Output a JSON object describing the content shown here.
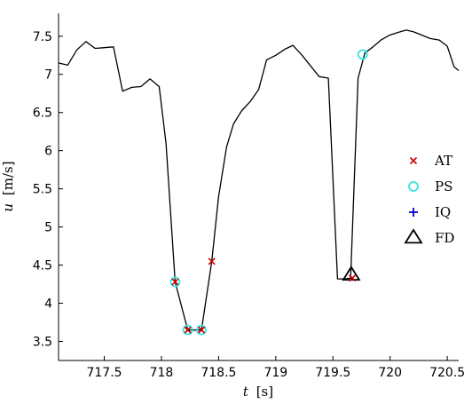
{
  "chart_data": {
    "type": "line",
    "xlabel": {
      "var": "t",
      "unit": "[s]"
    },
    "ylabel": {
      "var": "u",
      "unit": "[m/s]"
    },
    "xlim": [
      717.1,
      720.6
    ],
    "ylim": [
      3.25,
      7.8
    ],
    "xticks": [
      717.5,
      718,
      718.5,
      719,
      719.5,
      720,
      720.5
    ],
    "xtick_labels": [
      "717.5",
      "718",
      "718.5",
      "719",
      "719.5",
      "720",
      "720.5"
    ],
    "yticks": [
      3.5,
      4,
      4.5,
      5,
      5.5,
      6,
      6.5,
      7,
      7.5
    ],
    "ytick_labels": [
      "3.5",
      "4",
      "4.5",
      "5",
      "5.5",
      "6",
      "6.5",
      "7",
      "7.5"
    ],
    "grid": false,
    "legend_position": "right",
    "line": {
      "color": "#000000",
      "x": [
        717.1,
        717.18,
        717.26,
        717.34,
        717.42,
        717.5,
        717.58,
        717.66,
        717.74,
        717.82,
        717.9,
        717.98,
        718.04,
        718.12,
        718.23,
        718.35,
        718.44,
        718.5,
        718.57,
        718.63,
        718.7,
        718.78,
        718.85,
        718.92,
        719.0,
        719.08,
        719.15,
        719.23,
        719.31,
        719.38,
        719.46,
        719.54,
        719.6,
        719.655,
        719.72,
        719.78,
        719.85,
        719.92,
        719.99,
        720.07,
        720.14,
        720.2,
        720.27,
        720.35,
        720.43,
        720.5,
        720.56,
        720.6
      ],
      "y": [
        7.15,
        7.12,
        7.32,
        7.43,
        7.34,
        7.35,
        7.36,
        6.78,
        6.83,
        6.84,
        6.94,
        6.84,
        6.1,
        4.28,
        3.65,
        3.65,
        4.55,
        5.4,
        6.05,
        6.35,
        6.52,
        6.65,
        6.8,
        7.19,
        7.25,
        7.33,
        7.38,
        7.25,
        7.1,
        6.97,
        6.95,
        4.32,
        4.32,
        4.33,
        6.95,
        7.28,
        7.36,
        7.45,
        7.51,
        7.55,
        7.58,
        7.56,
        7.52,
        7.47,
        7.45,
        7.37,
        7.1,
        7.05
      ]
    },
    "connectors": [
      {
        "x": [
          718.23,
          718.35
        ],
        "y": [
          3.65,
          3.65
        ]
      }
    ],
    "series": [
      {
        "name": "AT",
        "marker": "x",
        "color": "#cc0000",
        "x": [
          718.12,
          718.23,
          718.35,
          718.44,
          719.67
        ],
        "y": [
          4.28,
          3.65,
          3.65,
          4.55,
          4.33
        ]
      },
      {
        "name": "PS",
        "marker": "circle",
        "color": "#33e6e6",
        "x": [
          718.12,
          718.23,
          718.35,
          719.76
        ],
        "y": [
          4.28,
          3.65,
          3.65,
          7.26
        ]
      },
      {
        "name": "IQ",
        "marker": "plus",
        "color": "#0000cc",
        "x": [],
        "y": []
      },
      {
        "name": "FD",
        "marker": "triangle",
        "color": "#000000",
        "x": [
          719.66
        ],
        "y": [
          4.37
        ]
      }
    ]
  }
}
